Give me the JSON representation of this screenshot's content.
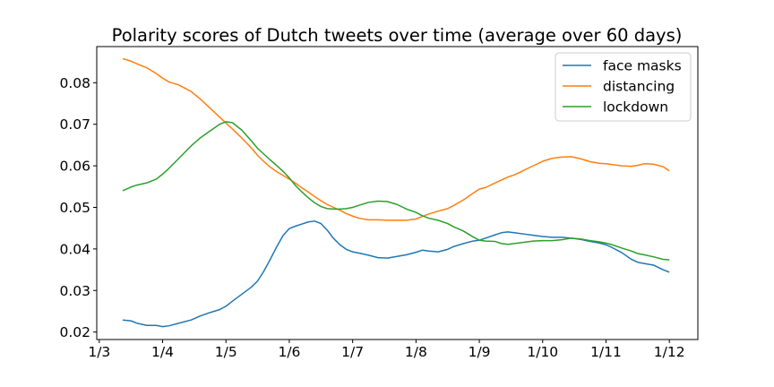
{
  "chart_data": {
    "type": "line",
    "title": "Polarity scores of Dutch tweets over time (average over 60 days)",
    "xlabel": "",
    "ylabel": "",
    "x_ticks": [
      {
        "label": "1/3",
        "pos": 0
      },
      {
        "label": "1/4",
        "pos": 1
      },
      {
        "label": "1/5",
        "pos": 2
      },
      {
        "label": "1/6",
        "pos": 3
      },
      {
        "label": "1/7",
        "pos": 4
      },
      {
        "label": "1/8",
        "pos": 5
      },
      {
        "label": "1/9",
        "pos": 6
      },
      {
        "label": "1/10",
        "pos": 7
      },
      {
        "label": "1/11",
        "pos": 8
      },
      {
        "label": "1/12",
        "pos": 9
      }
    ],
    "xlim": [
      -0.04,
      9.45
    ],
    "ylim": [
      0.0182,
      0.0887
    ],
    "y_ticks": [
      {
        "label": "0.02",
        "value": 0.02
      },
      {
        "label": "0.03",
        "value": 0.03
      },
      {
        "label": "0.04",
        "value": 0.04
      },
      {
        "label": "0.05",
        "value": 0.05
      },
      {
        "label": "0.06",
        "value": 0.06
      },
      {
        "label": "0.07",
        "value": 0.07
      },
      {
        "label": "0.08",
        "value": 0.08
      }
    ],
    "grid": false,
    "legend_position": "top-right",
    "series": [
      {
        "name": "face masks",
        "color": "#1f77b4",
        "x": [
          0.37,
          0.5,
          0.6,
          0.75,
          0.9,
          1.0,
          1.1,
          1.25,
          1.45,
          1.6,
          1.75,
          1.9,
          2.0,
          2.1,
          2.25,
          2.4,
          2.5,
          2.6,
          2.7,
          2.8,
          2.9,
          3.0,
          3.1,
          3.2,
          3.3,
          3.4,
          3.5,
          3.6,
          3.7,
          3.8,
          3.9,
          4.0,
          4.1,
          4.25,
          4.4,
          4.55,
          4.7,
          4.85,
          5.0,
          5.1,
          5.2,
          5.35,
          5.5,
          5.6,
          5.75,
          5.9,
          6.0,
          6.1,
          6.25,
          6.35,
          6.45,
          6.55,
          6.7,
          6.85,
          7.0,
          7.15,
          7.3,
          7.45,
          7.6,
          7.75,
          7.9,
          8.0,
          8.1,
          8.25,
          8.4,
          8.5,
          8.6,
          8.75,
          8.9,
          9.0
        ],
        "y": [
          0.0229,
          0.0227,
          0.0221,
          0.0216,
          0.0216,
          0.0213,
          0.0215,
          0.0221,
          0.0229,
          0.0239,
          0.0247,
          0.0254,
          0.0262,
          0.0274,
          0.0291,
          0.0308,
          0.0323,
          0.0347,
          0.0375,
          0.0405,
          0.0432,
          0.0449,
          0.0455,
          0.046,
          0.0465,
          0.0467,
          0.0461,
          0.0445,
          0.0425,
          0.041,
          0.0399,
          0.0393,
          0.039,
          0.0385,
          0.0379,
          0.0378,
          0.0382,
          0.0386,
          0.0392,
          0.0397,
          0.0395,
          0.0393,
          0.0399,
          0.0406,
          0.0413,
          0.0419,
          0.0421,
          0.0426,
          0.0434,
          0.0439,
          0.0441,
          0.0439,
          0.0436,
          0.0433,
          0.043,
          0.0428,
          0.0428,
          0.0426,
          0.0423,
          0.0418,
          0.0414,
          0.041,
          0.0403,
          0.0391,
          0.0375,
          0.0368,
          0.0365,
          0.0361,
          0.035,
          0.0344
        ]
      },
      {
        "name": "distancing",
        "color": "#ff7f0e",
        "x": [
          0.37,
          0.5,
          0.6,
          0.75,
          0.9,
          1.0,
          1.1,
          1.25,
          1.45,
          1.6,
          1.75,
          1.9,
          2.0,
          2.1,
          2.25,
          2.4,
          2.5,
          2.6,
          2.7,
          2.8,
          2.9,
          3.0,
          3.1,
          3.2,
          3.3,
          3.4,
          3.5,
          3.6,
          3.7,
          3.8,
          3.9,
          4.0,
          4.1,
          4.25,
          4.4,
          4.55,
          4.7,
          4.85,
          5.0,
          5.1,
          5.2,
          5.35,
          5.5,
          5.6,
          5.75,
          5.9,
          6.0,
          6.1,
          6.25,
          6.35,
          6.45,
          6.55,
          6.7,
          6.85,
          7.0,
          7.15,
          7.3,
          7.45,
          7.6,
          7.75,
          7.9,
          8.0,
          8.1,
          8.25,
          8.4,
          8.5,
          8.6,
          8.75,
          8.9,
          9.0
        ],
        "y": [
          0.0858,
          0.0852,
          0.0845,
          0.0836,
          0.0822,
          0.0811,
          0.0802,
          0.0795,
          0.0779,
          0.076,
          0.0739,
          0.0717,
          0.0703,
          0.0689,
          0.0667,
          0.0643,
          0.0625,
          0.061,
          0.0597,
          0.0586,
          0.0577,
          0.0568,
          0.0558,
          0.0547,
          0.0537,
          0.0526,
          0.0516,
          0.0507,
          0.05,
          0.0493,
          0.0485,
          0.0479,
          0.0474,
          0.047,
          0.047,
          0.0469,
          0.0469,
          0.0469,
          0.0472,
          0.0478,
          0.0484,
          0.0491,
          0.0497,
          0.0505,
          0.0518,
          0.0534,
          0.0544,
          0.0548,
          0.0559,
          0.0566,
          0.0573,
          0.0578,
          0.0589,
          0.06,
          0.0611,
          0.0618,
          0.0621,
          0.0622,
          0.0617,
          0.061,
          0.0606,
          0.0605,
          0.0603,
          0.06,
          0.0599,
          0.0601,
          0.0605,
          0.0604,
          0.0598,
          0.0588
        ]
      },
      {
        "name": "lockdown",
        "color": "#2ca02c",
        "x": [
          0.37,
          0.5,
          0.6,
          0.75,
          0.9,
          1.0,
          1.1,
          1.25,
          1.45,
          1.6,
          1.75,
          1.9,
          2.0,
          2.1,
          2.25,
          2.4,
          2.5,
          2.6,
          2.7,
          2.8,
          2.9,
          3.0,
          3.1,
          3.2,
          3.3,
          3.4,
          3.5,
          3.6,
          3.7,
          3.8,
          3.9,
          4.0,
          4.1,
          4.25,
          4.4,
          4.55,
          4.7,
          4.85,
          5.0,
          5.1,
          5.2,
          5.35,
          5.5,
          5.6,
          5.75,
          5.9,
          6.0,
          6.1,
          6.25,
          6.35,
          6.45,
          6.55,
          6.7,
          6.85,
          7.0,
          7.15,
          7.3,
          7.45,
          7.6,
          7.75,
          7.9,
          8.0,
          8.1,
          8.25,
          8.4,
          8.5,
          8.6,
          8.75,
          8.9,
          9.0
        ],
        "y": [
          0.054,
          0.0549,
          0.0554,
          0.0559,
          0.0568,
          0.058,
          0.0594,
          0.0617,
          0.0648,
          0.0668,
          0.0684,
          0.07,
          0.0706,
          0.0704,
          0.0686,
          0.066,
          0.0642,
          0.0628,
          0.0614,
          0.0601,
          0.0587,
          0.0571,
          0.0552,
          0.0537,
          0.0523,
          0.0511,
          0.0502,
          0.0497,
          0.0496,
          0.0496,
          0.0497,
          0.05,
          0.0505,
          0.0512,
          0.0515,
          0.0514,
          0.0507,
          0.0496,
          0.0488,
          0.048,
          0.0474,
          0.0469,
          0.0461,
          0.0453,
          0.0443,
          0.0429,
          0.0421,
          0.0419,
          0.0418,
          0.0413,
          0.0411,
          0.0413,
          0.0416,
          0.0419,
          0.042,
          0.042,
          0.0422,
          0.0426,
          0.0424,
          0.042,
          0.0417,
          0.0414,
          0.041,
          0.0402,
          0.0395,
          0.0389,
          0.0386,
          0.0381,
          0.0375,
          0.0374
        ]
      }
    ]
  }
}
